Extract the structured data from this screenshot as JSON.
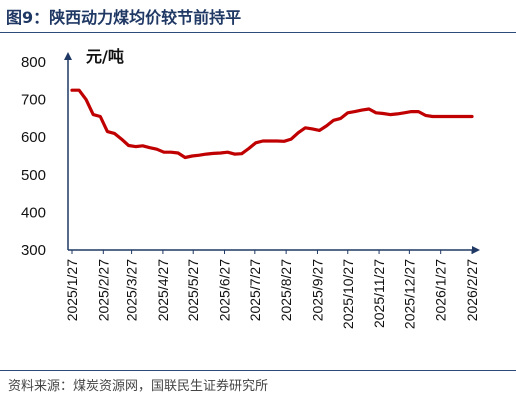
{
  "header": {
    "title": "图9：陕西动力煤均价较节前持平"
  },
  "footer": {
    "source": "资料来源：煤炭资源网，国联民生证券研究所"
  },
  "chart_data": {
    "type": "line",
    "title": "图9：陕西动力煤均价较节前持平",
    "ylabel": "元/吨",
    "xlabel": "",
    "ylim": [
      300,
      800
    ],
    "yticks": [
      300,
      400,
      500,
      600,
      700,
      800
    ],
    "x_tick_labels": [
      "2025/1/27",
      "2025/2/27",
      "2025/3/27",
      "2025/4/27",
      "2025/5/27",
      "2025/6/27",
      "2025/7/27",
      "2025/8/27",
      "2025/9/27",
      "2025/10/27",
      "2025/11/27",
      "2025/12/27",
      "2026/1/27",
      "2026/2/27"
    ],
    "grid": false,
    "colors": {
      "line": "#c00000",
      "axis": "#1f3864"
    },
    "series": [
      {
        "points": [
          [
            "2025/1/27",
            725
          ],
          [
            "2025/2/3",
            725
          ],
          [
            "2025/2/10",
            700
          ],
          [
            "2025/2/17",
            660
          ],
          [
            "2025/2/24",
            655
          ],
          [
            "2025/3/3",
            615
          ],
          [
            "2025/3/10",
            610
          ],
          [
            "2025/3/17",
            595
          ],
          [
            "2025/3/24",
            578
          ],
          [
            "2025/3/31",
            575
          ],
          [
            "2025/4/7",
            577
          ],
          [
            "2025/4/14",
            572
          ],
          [
            "2025/4/21",
            568
          ],
          [
            "2025/4/28",
            560
          ],
          [
            "2025/5/5",
            560
          ],
          [
            "2025/5/12",
            558
          ],
          [
            "2025/5/19",
            546
          ],
          [
            "2025/5/26",
            550
          ],
          [
            "2025/6/2",
            552
          ],
          [
            "2025/6/9",
            555
          ],
          [
            "2025/6/16",
            557
          ],
          [
            "2025/6/23",
            558
          ],
          [
            "2025/6/30",
            560
          ],
          [
            "2025/7/7",
            555
          ],
          [
            "2025/7/14",
            556
          ],
          [
            "2025/7/21",
            570
          ],
          [
            "2025/7/28",
            585
          ],
          [
            "2025/8/4",
            590
          ],
          [
            "2025/8/11",
            590
          ],
          [
            "2025/8/18",
            590
          ],
          [
            "2025/8/25",
            589
          ],
          [
            "2025/9/1",
            595
          ],
          [
            "2025/9/8",
            612
          ],
          [
            "2025/9/15",
            625
          ],
          [
            "2025/9/22",
            622
          ],
          [
            "2025/9/29",
            618
          ],
          [
            "2025/10/6",
            630
          ],
          [
            "2025/10/13",
            645
          ],
          [
            "2025/10/20",
            650
          ],
          [
            "2025/10/27",
            665
          ],
          [
            "2025/11/3",
            668
          ],
          [
            "2025/11/10",
            672
          ],
          [
            "2025/11/17",
            675
          ],
          [
            "2025/11/24",
            665
          ],
          [
            "2025/12/1",
            663
          ],
          [
            "2025/12/8",
            660
          ],
          [
            "2025/12/15",
            662
          ],
          [
            "2025/12/22",
            665
          ],
          [
            "2025/12/29",
            668
          ],
          [
            "2026/1/5",
            668
          ],
          [
            "2026/1/12",
            658
          ],
          [
            "2026/1/19",
            655
          ],
          [
            "2026/1/26",
            655
          ],
          [
            "2026/2/2",
            655
          ],
          [
            "2026/2/9",
            655
          ],
          [
            "2026/2/16",
            655
          ],
          [
            "2026/2/27",
            655
          ]
        ]
      }
    ]
  }
}
